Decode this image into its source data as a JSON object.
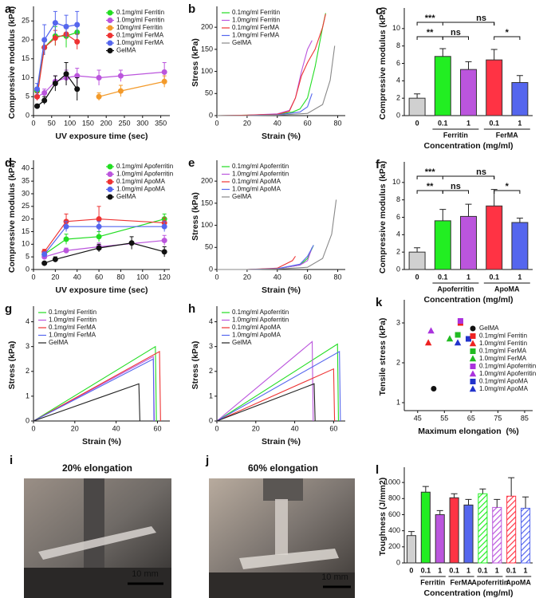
{
  "chart_data": [
    {
      "type": "line",
      "label": "a",
      "xlabel": "UV exposure time (sec)",
      "ylabel": "Compressive modulus (kPa)",
      "xlim": [
        0,
        375
      ],
      "xticks": [
        0,
        50,
        100,
        150,
        200,
        250,
        300,
        350
      ],
      "ylim": [
        0,
        28
      ],
      "yticks": [
        0,
        5,
        10,
        15,
        20,
        25
      ],
      "legend": "upper right",
      "markers": true,
      "series": [
        {
          "name": "0.1mg/ml Ferritin",
          "color": "#22dd22",
          "x": [
            10,
            30,
            60,
            90,
            120
          ],
          "values": [
            6.5,
            18,
            21,
            21,
            22
          ],
          "errors": [
            1,
            2,
            2.5,
            3,
            2
          ]
        },
        {
          "name": "1.0mg/ml Ferritin",
          "color": "#bb55dd",
          "x": [
            10,
            30,
            60,
            90,
            120,
            180,
            240,
            360
          ],
          "values": [
            5,
            6,
            9,
            10,
            10.5,
            10,
            10.5,
            11.5
          ],
          "errors": [
            1,
            1,
            1.5,
            2,
            2,
            2,
            1.5,
            2.5
          ]
        },
        {
          "name": "10mg/ml Ferritin",
          "color": "#f39a2a",
          "x": [
            180,
            240,
            360
          ],
          "values": [
            5,
            6.5,
            9
          ],
          "errors": [
            1,
            1.5,
            1.5
          ]
        },
        {
          "name": "0.1mg/ml FerMA",
          "color": "#ee3333",
          "x": [
            10,
            30,
            60,
            90,
            120
          ],
          "values": [
            5,
            18,
            20.5,
            21.5,
            19.5
          ],
          "errors": [
            1,
            2,
            2,
            1.5,
            2
          ]
        },
        {
          "name": "1.0mg/ml FerMA",
          "color": "#5566ee",
          "x": [
            10,
            30,
            60,
            90,
            120
          ],
          "values": [
            7,
            20,
            24.5,
            23.5,
            24
          ],
          "errors": [
            1.5,
            4,
            3,
            3,
            3.5
          ]
        },
        {
          "name": "GelMA",
          "color": "#111111",
          "x": [
            10,
            30,
            60,
            90,
            120
          ],
          "values": [
            2.5,
            4,
            8.5,
            11,
            7
          ],
          "errors": [
            0.5,
            1,
            2,
            3,
            3
          ]
        }
      ]
    },
    {
      "type": "line",
      "label": "b",
      "xlabel": "Strain (%)",
      "ylabel": "Stress (kPa)",
      "xlim": [
        0,
        85
      ],
      "xticks": [
        0,
        20,
        40,
        60,
        80
      ],
      "ylim": [
        0,
        240
      ],
      "yticks": [
        0,
        50,
        100,
        150,
        200
      ],
      "legend": "upper left",
      "markers": false,
      "series": [
        {
          "name": "0.1mg/ml Ferritin",
          "color": "#22dd22",
          "x": [
            0,
            20,
            40,
            50,
            55,
            60,
            65,
            70,
            72
          ],
          "values": [
            0,
            1,
            3,
            8,
            15,
            40,
            110,
            200,
            232
          ]
        },
        {
          "name": "1.0mg/ml Ferritin",
          "color": "#bb55dd",
          "x": [
            0,
            20,
            40,
            48,
            52,
            56,
            60,
            63
          ],
          "values": [
            0,
            1,
            4,
            12,
            40,
            100,
            150,
            170
          ]
        },
        {
          "name": "0.1mg/ml FerMA",
          "color": "#ee3333",
          "x": [
            0,
            20,
            40,
            48,
            52,
            56,
            60,
            65,
            70,
            72
          ],
          "values": [
            0,
            1,
            3,
            10,
            40,
            90,
            120,
            150,
            200,
            230
          ]
        },
        {
          "name": "1.0mg/ml FerMA",
          "color": "#5566ee",
          "x": [
            0,
            20,
            40,
            55,
            60,
            63
          ],
          "values": [
            0,
            0,
            2,
            8,
            20,
            50
          ]
        },
        {
          "name": "GelMA",
          "color": "#888888",
          "x": [
            0,
            20,
            40,
            60,
            70,
            75,
            78
          ],
          "values": [
            0,
            0,
            1,
            5,
            25,
            80,
            158
          ]
        }
      ]
    },
    {
      "type": "bar",
      "label": "c",
      "xlabel": "Concentration (mg/ml)",
      "ylabel": "Compressive modulus (kPa)",
      "categories": [
        "0",
        "0.1",
        "1",
        "0.1",
        "1"
      ],
      "groups": [
        "Ferritin",
        "FerMA"
      ],
      "values": [
        2,
        6.8,
        5.3,
        6.4,
        3.8
      ],
      "errors": [
        0.5,
        0.9,
        0.9,
        1.2,
        0.8
      ],
      "colors": [
        "#d0d0d0",
        "#22ee22",
        "#bb55dd",
        "#ff3344",
        "#5566ee"
      ],
      "ylim": [
        0,
        12
      ],
      "yticks": [
        0,
        2,
        4,
        6,
        8,
        10
      ],
      "significance": [
        "***",
        "ns",
        "**",
        "ns",
        "*"
      ]
    },
    {
      "type": "line",
      "label": "d",
      "xlabel": "UV exposure time (sec)",
      "ylabel": "Compressive modulus (kPa)",
      "xlim": [
        0,
        125
      ],
      "xticks": [
        0,
        20,
        40,
        60,
        80,
        100,
        120
      ],
      "ylim": [
        0,
        42
      ],
      "yticks": [
        0,
        5,
        10,
        15,
        20,
        25,
        30,
        35,
        40
      ],
      "legend": "upper right",
      "markers": true,
      "series": [
        {
          "name": "0.1mg/ml Apoferritin",
          "color": "#22dd22",
          "x": [
            10,
            30,
            60,
            120
          ],
          "values": [
            6,
            12,
            13,
            20
          ],
          "errors": [
            1,
            2,
            2,
            2
          ]
        },
        {
          "name": "1.0mg/ml Apoferritin",
          "color": "#bb55dd",
          "x": [
            10,
            30,
            60,
            120
          ],
          "values": [
            5,
            7.5,
            9,
            11.5
          ],
          "errors": [
            1,
            1,
            1.5,
            2
          ]
        },
        {
          "name": "0.1mg/ml ApoMA",
          "color": "#ee3333",
          "x": [
            10,
            30,
            60,
            120
          ],
          "values": [
            7,
            19,
            20,
            18.5
          ],
          "errors": [
            1,
            3,
            5,
            2
          ]
        },
        {
          "name": "1.0mg/ml ApoMA",
          "color": "#5566ee",
          "x": [
            10,
            30,
            60,
            120
          ],
          "values": [
            6,
            17,
            17,
            17
          ],
          "errors": [
            1,
            2,
            2,
            2
          ]
        },
        {
          "name": "GelMA",
          "color": "#111111",
          "x": [
            10,
            20,
            60,
            90,
            120
          ],
          "values": [
            2.5,
            4,
            8.5,
            10.5,
            7
          ],
          "errors": [
            0.5,
            1,
            1.5,
            2.5,
            2
          ]
        }
      ]
    },
    {
      "type": "line",
      "label": "e",
      "xlabel": "Strain (%)",
      "ylabel": "Stress (kPa)",
      "xlim": [
        0,
        85
      ],
      "xticks": [
        0,
        20,
        40,
        60,
        80
      ],
      "ylim": [
        0,
        240
      ],
      "yticks": [
        0,
        50,
        100,
        150,
        200
      ],
      "legend": "upper left",
      "markers": false,
      "series": [
        {
          "name": "0.1mg/ml Apoferritin",
          "color": "#22dd22",
          "x": [
            0,
            20,
            40,
            55,
            60,
            64
          ],
          "values": [
            0,
            0,
            2,
            10,
            25,
            55
          ]
        },
        {
          "name": "1.0mg/ml Apoferritin",
          "color": "#bb55dd",
          "x": [
            0,
            20,
            40,
            55,
            60,
            63
          ],
          "values": [
            0,
            0,
            2,
            10,
            20,
            50
          ]
        },
        {
          "name": "0.1mg/ml ApoMA",
          "color": "#ee3333",
          "x": [
            0,
            20,
            40,
            50,
            52
          ],
          "values": [
            0,
            0,
            3,
            20,
            30
          ]
        },
        {
          "name": "1.0mg/ml ApoMA",
          "color": "#5566ee",
          "x": [
            0,
            20,
            40,
            55,
            60,
            64
          ],
          "values": [
            0,
            0,
            2,
            12,
            30,
            55
          ]
        },
        {
          "name": "GelMA",
          "color": "#888888",
          "x": [
            0,
            20,
            40,
            60,
            70,
            76,
            79
          ],
          "values": [
            0,
            0,
            1,
            5,
            25,
            80,
            158
          ]
        }
      ]
    },
    {
      "type": "bar",
      "label": "f",
      "xlabel": "Concentration (mg/ml)",
      "ylabel": "Compressive modulus (kPa)",
      "categories": [
        "0",
        "0.1",
        "1",
        "0.1",
        "1"
      ],
      "groups": [
        "Apoferritin",
        "ApoMA"
      ],
      "values": [
        2,
        5.6,
        6.1,
        7.3,
        5.4
      ],
      "errors": [
        0.5,
        1.3,
        1.4,
        1.9,
        0.5
      ],
      "colors": [
        "#d0d0d0",
        "#22ee22",
        "#bb55dd",
        "#ff3344",
        "#5566ee"
      ],
      "ylim": [
        0,
        12
      ],
      "yticks": [
        0,
        2,
        4,
        6,
        8,
        10
      ],
      "significance": [
        "***",
        "ns",
        "**",
        "ns",
        "*"
      ]
    },
    {
      "type": "line",
      "label": "g",
      "xlabel": "Strain (%)",
      "ylabel": "Stress (kPa)",
      "xlim": [
        0,
        66
      ],
      "xticks": [
        0,
        20,
        40,
        60
      ],
      "ylim": [
        0,
        4.5
      ],
      "yticks": [
        0,
        1,
        2,
        3,
        4
      ],
      "legend": "upper left",
      "markers": false,
      "series": [
        {
          "name": "0.1mg/ml Ferritin",
          "color": "#22dd22",
          "x": [
            0,
            59,
            59.5
          ],
          "values": [
            0,
            3.0,
            0
          ]
        },
        {
          "name": "1.0mg/ml Ferritin",
          "color": "#bb55dd",
          "x": [
            0,
            58,
            58.5
          ],
          "values": [
            0,
            2.6,
            0
          ]
        },
        {
          "name": "0.1mg/ml FerMA",
          "color": "#ee3333",
          "x": [
            0,
            61,
            61.5
          ],
          "values": [
            0,
            2.8,
            0
          ]
        },
        {
          "name": "1.0mg/ml FerMA",
          "color": "#5566ee",
          "x": [
            0,
            58,
            58.3
          ],
          "values": [
            0,
            2.5,
            0
          ]
        },
        {
          "name": "GelMA",
          "color": "#222222",
          "x": [
            0,
            51,
            51.5
          ],
          "values": [
            0,
            1.5,
            0
          ]
        }
      ]
    },
    {
      "type": "line",
      "label": "h",
      "xlabel": "Strain (%)",
      "ylabel": "Stress (kPa)",
      "xlim": [
        0,
        66
      ],
      "xticks": [
        0,
        20,
        40,
        60
      ],
      "ylim": [
        0,
        4.5
      ],
      "yticks": [
        0,
        1,
        2,
        3,
        4
      ],
      "legend": "upper left",
      "markers": false,
      "series": [
        {
          "name": "0.1mg/ml Apoferritin",
          "color": "#22dd22",
          "x": [
            0,
            62,
            62.5
          ],
          "values": [
            0,
            3.1,
            0
          ]
        },
        {
          "name": "1.0mg/ml Apoferritin",
          "color": "#bb55dd",
          "x": [
            0,
            49,
            49.5
          ],
          "values": [
            0,
            3.2,
            0
          ]
        },
        {
          "name": "0.1mg/ml ApoMA",
          "color": "#ee3333",
          "x": [
            0,
            60,
            60.5
          ],
          "values": [
            0,
            2.1,
            0
          ]
        },
        {
          "name": "1.0mg/ml ApoMA",
          "color": "#5566ee",
          "x": [
            0,
            63,
            63.5
          ],
          "values": [
            0,
            2.8,
            0
          ]
        },
        {
          "name": "GelMA",
          "color": "#222222",
          "x": [
            0,
            50,
            50.5
          ],
          "values": [
            0,
            1.5,
            0
          ]
        }
      ]
    },
    {
      "type": "scatter",
      "label": "k",
      "xlabel": "Maximum elongation  (%)",
      "ylabel": "Tensile stress (kPa)",
      "xlim": [
        40,
        88
      ],
      "xticks": [
        45,
        55,
        65,
        75,
        85
      ],
      "ylim": [
        0.8,
        3.5
      ],
      "yticks": [
        1,
        2,
        3
      ],
      "legend": "right",
      "series": [
        {
          "name": "GelMA",
          "color": "#111111",
          "marker": "circle",
          "x": [
            51
          ],
          "values": [
            1.35
          ]
        },
        {
          "name": "0.1mg/ml Ferritin",
          "color": "#ee2222",
          "marker": "square",
          "x": [
            61
          ],
          "values": [
            3.0
          ]
        },
        {
          "name": "1.0mg/ml Ferritin",
          "color": "#ee2222",
          "marker": "triangle",
          "x": [
            49
          ],
          "values": [
            2.5
          ]
        },
        {
          "name": "0.1mg/ml FerMA",
          "color": "#22bb22",
          "marker": "square",
          "x": [
            60
          ],
          "values": [
            2.7
          ]
        },
        {
          "name": "1.0mg/ml FerMA",
          "color": "#22bb22",
          "marker": "triangle",
          "x": [
            57
          ],
          "values": [
            2.6
          ]
        },
        {
          "name": "0.1mg/ml Apoferritin",
          "color": "#aa33dd",
          "marker": "square",
          "x": [
            61
          ],
          "values": [
            3.05
          ]
        },
        {
          "name": "1.0mg/ml Apoferritin",
          "color": "#aa33dd",
          "marker": "triangle",
          "x": [
            50
          ],
          "values": [
            2.8
          ]
        },
        {
          "name": "0.1mg/ml ApoMA",
          "color": "#2233cc",
          "marker": "square",
          "x": [
            64
          ],
          "values": [
            2.6
          ]
        },
        {
          "name": "1.0mg/ml ApoMA",
          "color": "#2233cc",
          "marker": "triangle",
          "x": [
            60
          ],
          "values": [
            2.5
          ]
        }
      ]
    },
    {
      "type": "bar",
      "label": "l",
      "xlabel": "Concentration (mg/ml)",
      "ylabel": "Toughness (J/mm2)",
      "categories": [
        "0",
        "0.1",
        "1",
        "0.1",
        "1",
        "0.1",
        "1",
        "0.1",
        "1"
      ],
      "groups": [
        "Ferritin",
        "FerMA",
        "Apoferritin",
        "ApoMA"
      ],
      "values": [
        340,
        880,
        600,
        810,
        720,
        860,
        690,
        830,
        680
      ],
      "errors": [
        50,
        70,
        50,
        50,
        70,
        60,
        100,
        230,
        140
      ],
      "colors": [
        "#d0d0d0",
        "#22ee22",
        "#bb55dd",
        "#ff3344",
        "#5566ee",
        "#22ee22",
        "#bb55dd",
        "#ff3344",
        "#5566ee"
      ],
      "hatch": [
        false,
        false,
        false,
        false,
        false,
        true,
        true,
        true,
        true
      ],
      "ylim": [
        0,
        1150
      ],
      "yticks": [
        0,
        200,
        400,
        600,
        800,
        1000
      ]
    }
  ],
  "photos": [
    {
      "label": "i",
      "title": "20% elongation",
      "scale": "10 mm"
    },
    {
      "label": "j",
      "title": "60% elongation",
      "scale": "10 mm"
    }
  ]
}
